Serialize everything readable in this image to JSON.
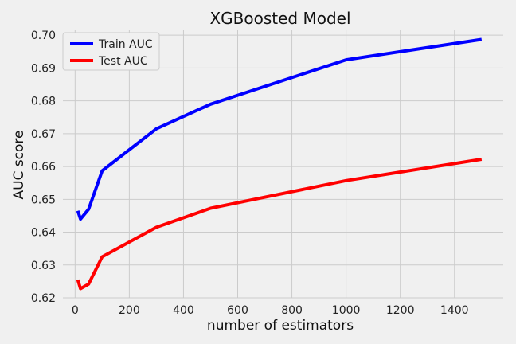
{
  "chart_data": {
    "type": "line",
    "title": "XGBoosted Model",
    "xlabel": "number of estimators",
    "ylabel": "AUC score",
    "xlim": [
      -45,
      1580
    ],
    "ylim": [
      0.62,
      0.7015
    ],
    "xticks": [
      0,
      200,
      400,
      600,
      800,
      1000,
      1200,
      1400
    ],
    "yticks": [
      0.62,
      0.63,
      0.64,
      0.65,
      0.66,
      0.67,
      0.68,
      0.69,
      0.7
    ],
    "ytick_labels": [
      "0.62",
      "0.63",
      "0.64",
      "0.65",
      "0.66",
      "0.67",
      "0.68",
      "0.69",
      "0.70"
    ],
    "grid": true,
    "legend_position": "top-left",
    "x": [
      10,
      20,
      50,
      100,
      300,
      500,
      1000,
      1500
    ],
    "series": [
      {
        "name": "Train AUC",
        "color": "#0000ff",
        "values": [
          0.6465,
          0.644,
          0.647,
          0.6587,
          0.6715,
          0.679,
          0.6925,
          0.6987
        ]
      },
      {
        "name": "Test AUC",
        "color": "#ff0000",
        "values": [
          0.6255,
          0.6228,
          0.6242,
          0.6325,
          0.6415,
          0.6473,
          0.6557,
          0.6622
        ]
      }
    ]
  }
}
